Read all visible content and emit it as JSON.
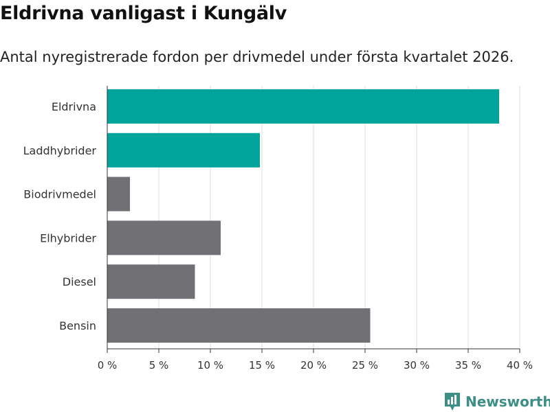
{
  "title": "Eldrivna vanligast i Kungälv",
  "subtitle": "Antal nyregistrerade fordon per drivmedel under första kvartalet 2026.",
  "brand": {
    "name": "Newsworthy",
    "icon": "bar-chart-logo-icon",
    "color": "#3c8f86"
  },
  "colors": {
    "highlight": "#00a49a",
    "default": "#717075",
    "grid": "#dddddd",
    "axis": "#333333"
  },
  "chart_data": {
    "type": "bar",
    "orientation": "horizontal",
    "title": "Eldrivna vanligast i Kungälv",
    "subtitle": "Antal nyregistrerade fordon per drivmedel under första kvartalet 2026.",
    "categories": [
      "Eldrivna",
      "Laddhybrider",
      "Biodrivmedel",
      "Elhybrider",
      "Diesel",
      "Bensin"
    ],
    "values": [
      38.0,
      14.8,
      2.2,
      11.0,
      8.5,
      25.5
    ],
    "highlighted": [
      true,
      true,
      false,
      false,
      false,
      false
    ],
    "unit": "%",
    "xlim": [
      0,
      40
    ],
    "ticks": [
      0,
      5,
      10,
      15,
      20,
      25,
      30,
      35,
      40
    ],
    "tick_labels": [
      "0 %",
      "5 %",
      "10 %",
      "15 %",
      "20 %",
      "25 %",
      "30 %",
      "35 %",
      "40 %"
    ],
    "xlabel": "",
    "ylabel": "",
    "grid": true
  }
}
